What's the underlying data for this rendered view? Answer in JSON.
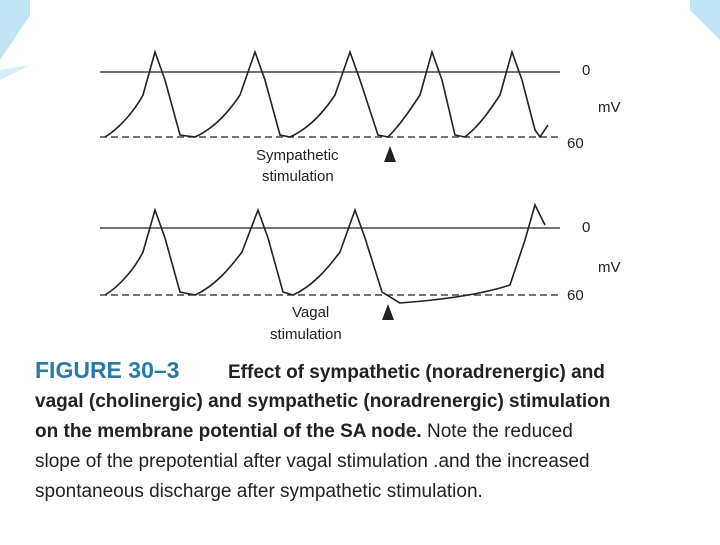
{
  "figure": {
    "top_trace": {
      "zero_label": "0",
      "unit_label": "mV",
      "baseline_label": "60",
      "stimulus_lines": [
        "Sympathetic",
        "stimulation"
      ]
    },
    "bottom_trace": {
      "zero_label": "0",
      "unit_label": "mV",
      "baseline_label": "60",
      "stimulus_lines": [
        "Vagal",
        "stimulation"
      ]
    },
    "caption": {
      "label": "FIGURE 30–3",
      "bold_lines": [
        "Effect of sympathetic (noradrenergic) and",
        "vagal (cholinergic) and sympathetic (noradrenergic) stimulation",
        "on the membrane potential of the SA node."
      ],
      "normal_lines": [
        "Note the reduced",
        "slope of the prepotential after vagal stimulation .and the increased",
        "spontaneous discharge after sympathetic stimulation."
      ]
    }
  }
}
